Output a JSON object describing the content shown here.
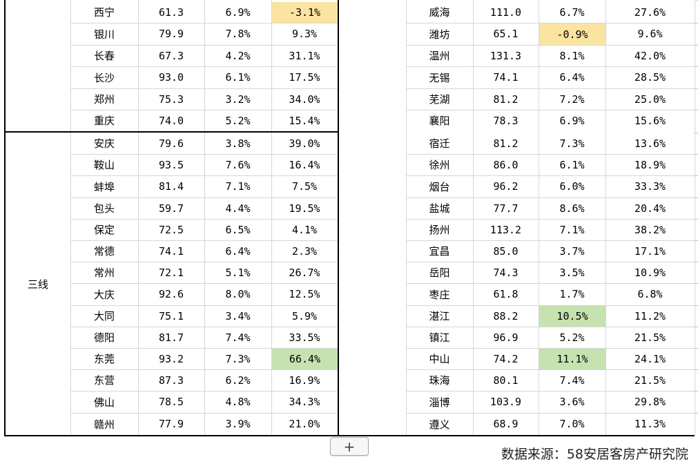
{
  "tier_label": "三线",
  "left_rows": [
    {
      "city": "西宁",
      "price": "61.3",
      "change": "6.9%",
      "yoy": "-3.1%",
      "yoy_hl": "yellow"
    },
    {
      "city": "银川",
      "price": "79.9",
      "change": "7.8%",
      "yoy": "9.3%"
    },
    {
      "city": "长春",
      "price": "67.3",
      "change": "4.2%",
      "yoy": "31.1%"
    },
    {
      "city": "长沙",
      "price": "93.0",
      "change": "6.1%",
      "yoy": "17.5%"
    },
    {
      "city": "郑州",
      "price": "75.3",
      "change": "3.2%",
      "yoy": "34.0%"
    },
    {
      "city": "重庆",
      "price": "74.0",
      "change": "5.2%",
      "yoy": "15.4%"
    },
    {
      "city": "安庆",
      "price": "79.6",
      "change": "3.8%",
      "yoy": "39.0%"
    },
    {
      "city": "鞍山",
      "price": "93.5",
      "change": "7.6%",
      "yoy": "16.4%"
    },
    {
      "city": "蚌埠",
      "price": "81.4",
      "change": "7.1%",
      "yoy": "7.5%"
    },
    {
      "city": "包头",
      "price": "59.7",
      "change": "4.4%",
      "yoy": "19.5%"
    },
    {
      "city": "保定",
      "price": "72.5",
      "change": "6.5%",
      "yoy": "4.1%"
    },
    {
      "city": "常德",
      "price": "74.1",
      "change": "6.4%",
      "yoy": "2.3%"
    },
    {
      "city": "常州",
      "price": "72.1",
      "change": "5.1%",
      "yoy": "26.7%"
    },
    {
      "city": "大庆",
      "price": "92.6",
      "change": "8.0%",
      "yoy": "12.5%"
    },
    {
      "city": "大同",
      "price": "75.1",
      "change": "3.4%",
      "yoy": "5.9%"
    },
    {
      "city": "德阳",
      "price": "81.7",
      "change": "7.4%",
      "yoy": "33.5%"
    },
    {
      "city": "东莞",
      "price": "93.2",
      "change": "7.3%",
      "yoy": "66.4%",
      "yoy_hl": "green"
    },
    {
      "city": "东营",
      "price": "87.3",
      "change": "6.2%",
      "yoy": "16.9%"
    },
    {
      "city": "佛山",
      "price": "78.5",
      "change": "4.8%",
      "yoy": "34.3%"
    },
    {
      "city": "赣州",
      "price": "77.9",
      "change": "3.9%",
      "yoy": "21.0%"
    }
  ],
  "right_rows": [
    {
      "city": "威海",
      "price": "111.0",
      "change": "6.7%",
      "yoy": "27.6%"
    },
    {
      "city": "潍坊",
      "price": "65.1",
      "change": "-0.9%",
      "yoy": "9.6%",
      "change_hl": "yellow"
    },
    {
      "city": "温州",
      "price": "131.3",
      "change": "8.1%",
      "yoy": "42.0%"
    },
    {
      "city": "无锡",
      "price": "74.1",
      "change": "6.4%",
      "yoy": "28.5%"
    },
    {
      "city": "芜湖",
      "price": "81.2",
      "change": "7.2%",
      "yoy": "25.0%"
    },
    {
      "city": "襄阳",
      "price": "78.3",
      "change": "6.9%",
      "yoy": "15.6%"
    },
    {
      "city": "宿迁",
      "price": "81.2",
      "change": "7.3%",
      "yoy": "13.6%"
    },
    {
      "city": "徐州",
      "price": "86.0",
      "change": "6.1%",
      "yoy": "18.9%"
    },
    {
      "city": "烟台",
      "price": "96.2",
      "change": "6.0%",
      "yoy": "33.3%"
    },
    {
      "city": "盐城",
      "price": "77.7",
      "change": "8.6%",
      "yoy": "20.4%"
    },
    {
      "city": "扬州",
      "price": "113.2",
      "change": "7.1%",
      "yoy": "38.2%"
    },
    {
      "city": "宜昌",
      "price": "85.0",
      "change": "3.7%",
      "yoy": "17.1%"
    },
    {
      "city": "岳阳",
      "price": "74.3",
      "change": "3.5%",
      "yoy": "10.9%"
    },
    {
      "city": "枣庄",
      "price": "61.8",
      "change": "1.7%",
      "yoy": "6.8%"
    },
    {
      "city": "湛江",
      "price": "88.2",
      "change": "10.5%",
      "yoy": "11.2%",
      "change_hl": "green"
    },
    {
      "city": "镇江",
      "price": "96.9",
      "change": "5.2%",
      "yoy": "21.5%"
    },
    {
      "city": "中山",
      "price": "74.2",
      "change": "11.1%",
      "yoy": "24.1%",
      "change_hl": "green"
    },
    {
      "city": "珠海",
      "price": "80.1",
      "change": "7.4%",
      "yoy": "21.5%"
    },
    {
      "city": "淄博",
      "price": "103.9",
      "change": "3.6%",
      "yoy": "29.8%"
    },
    {
      "city": "遵义",
      "price": "68.9",
      "change": "7.0%",
      "yoy": "11.3%"
    }
  ],
  "add_sheet_label": "+",
  "source_note": "数据来源：58安居客房产研究院",
  "colors": {
    "highlight_yellow": "#fbe3a0",
    "highlight_green": "#c5e2b0",
    "grid": "#d6d6d6",
    "border": "#000000"
  }
}
